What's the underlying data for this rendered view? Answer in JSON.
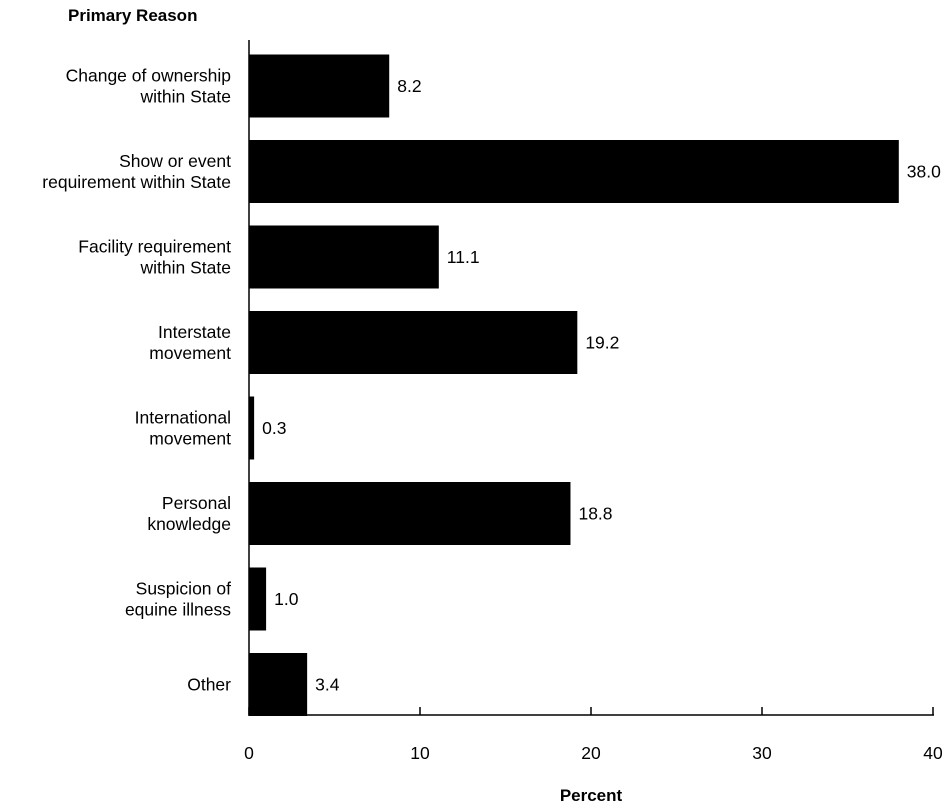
{
  "chart_data": {
    "type": "bar",
    "orientation": "horizontal",
    "title": "",
    "ylabel": "Primary Reason",
    "xlabel": "Percent",
    "categories": [
      [
        "Change of ownership",
        "within State"
      ],
      [
        "Show or event",
        "requirement within State"
      ],
      [
        "Facility requirement",
        "within State"
      ],
      [
        "Interstate",
        "movement"
      ],
      [
        "International",
        "movement"
      ],
      [
        "Personal",
        "knowledge"
      ],
      [
        "Suspicion of",
        "equine illness"
      ],
      [
        "Other"
      ]
    ],
    "values": [
      8.2,
      38.0,
      11.1,
      19.2,
      0.3,
      18.8,
      1.0,
      3.4
    ],
    "value_labels": [
      "8.2",
      "38.0",
      "11.1",
      "19.2",
      "0.3",
      "18.8",
      "1.0",
      "3.4"
    ],
    "xlim": [
      0,
      40
    ],
    "xticks": [
      0,
      10,
      20,
      30,
      40
    ],
    "bar_color": "#000000",
    "grid": false,
    "legend": "none"
  }
}
